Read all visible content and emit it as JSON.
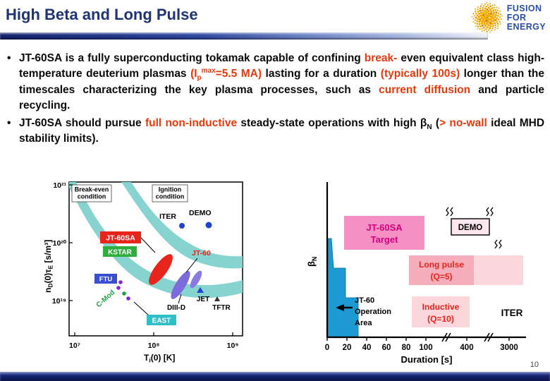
{
  "header": {
    "title": "High Beta and Long Pulse",
    "logo": {
      "line1": "FUSION",
      "line2": "FOR",
      "line3": "ENERGY"
    }
  },
  "bullets": {
    "marker": "•",
    "b1": {
      "s1": "JT-60SA is a fully superconducting tokamak capable of confining ",
      "s2": "break-",
      "s3": "even equivalent class high-temperature deuterium plasmas ",
      "s4a": "(I",
      "s4b": "p",
      "s4c": "max",
      "s4d": "=5.5 MA)",
      "s5": " lasting for a duration ",
      "s6": "(typically 100s)",
      "s7": " longer than the timescales characterizing the key plasma processes, such as ",
      "s8": "current diffusion",
      "s9": " and particle recycling."
    },
    "b2": {
      "s1": "JT-60SA should pursue ",
      "s2": "full non-inductive",
      "s3": " steady-state operations with high ",
      "s4": "β",
      "s5": "N",
      "s6": " (",
      "s7": "> no-wall",
      "s8": " ideal MHD stability limits)."
    }
  },
  "left_chart": {
    "y_ticks": [
      "10²¹",
      "10²⁰",
      "10¹⁹"
    ],
    "x_ticks": [
      "10⁷",
      "10⁸",
      "10⁹"
    ],
    "y_label": {
      "p1": "n",
      "p2": "D",
      "p3": "(0)τ",
      "p4": "E",
      "p5": " [s/m³]"
    },
    "x_label": {
      "p1": "T",
      "p2": "i",
      "p3": "(0) [K]"
    },
    "breakeven": {
      "l1": "Break-even",
      "l2": "condition"
    },
    "ignition": {
      "l1": "Ignition",
      "l2": "condition"
    },
    "iter": "ITER",
    "demo": "DEMO",
    "jt60sa": "JT-60SA",
    "kstar": "KSTAR",
    "jt60": "JT-60",
    "ftu": "FTU",
    "cmod": "C-Mod",
    "jet": "JET",
    "diiid": "DIII-D",
    "tftr": "TFTR",
    "east": "EAST"
  },
  "right_chart": {
    "y_label": {
      "p1": "β",
      "p2": "N"
    },
    "x_ticks": [
      "0",
      "20",
      "40",
      "60",
      "80",
      "100",
      "400",
      "3000"
    ],
    "x_label": "Duration [s]",
    "target": {
      "l1": "JT-60SA",
      "l2": "Target"
    },
    "operation": {
      "l1": "JT-60",
      "l2": "Operation",
      "l3": "Area"
    },
    "longpulse": {
      "l1": "Long pulse",
      "l2": "(Q=5)"
    },
    "inductive": {
      "l1": "Inductive",
      "l2": "(Q=10)"
    },
    "demo": "DEMO",
    "iter": "ITER"
  },
  "footer": {
    "page_number": "10"
  },
  "colors": {
    "title_navy": "#1e3473",
    "accent_red": "#e8380c",
    "magenta": "#d6007f",
    "pink_target": "#f590c5",
    "blue_region": "#1e9ad2",
    "cyan_band": "#86d3cf",
    "label_red": "#e8251c",
    "label_green": "#2fae3e",
    "label_cyan": "#2fbfc4",
    "label_blue": "#3a4ed0"
  },
  "chart_data": [
    {
      "type": "area",
      "title": "Fusion performance diagram (Lawson-type plot)",
      "xlabel": "Ti(0) [K]",
      "ylabel": "nD(0)τE [s/m³]",
      "x_scale": "log",
      "y_scale": "log",
      "xlim": [
        10000000.0,
        1000000000.0
      ],
      "ylim": [
        1e+19,
        1e+21
      ],
      "regions": [
        "Break-even condition",
        "Ignition condition"
      ],
      "devices": [
        "ITER",
        "DEMO",
        "JT-60SA",
        "KSTAR",
        "JT-60",
        "FTU",
        "C-Mod",
        "JET",
        "DIII-D",
        "TFTR",
        "EAST"
      ]
    },
    {
      "type": "area",
      "title": "Normalized beta vs pulse duration",
      "xlabel": "Duration [s]",
      "ylabel": "βN",
      "x_ticks": [
        0,
        20,
        40,
        60,
        80,
        100,
        400,
        3000
      ],
      "axis_break": true,
      "regions": [
        "JT-60 Operation Area",
        "JT-60SA Target",
        "Long pulse (Q=5)",
        "Inductive (Q=10)",
        "DEMO",
        "ITER"
      ]
    }
  ]
}
